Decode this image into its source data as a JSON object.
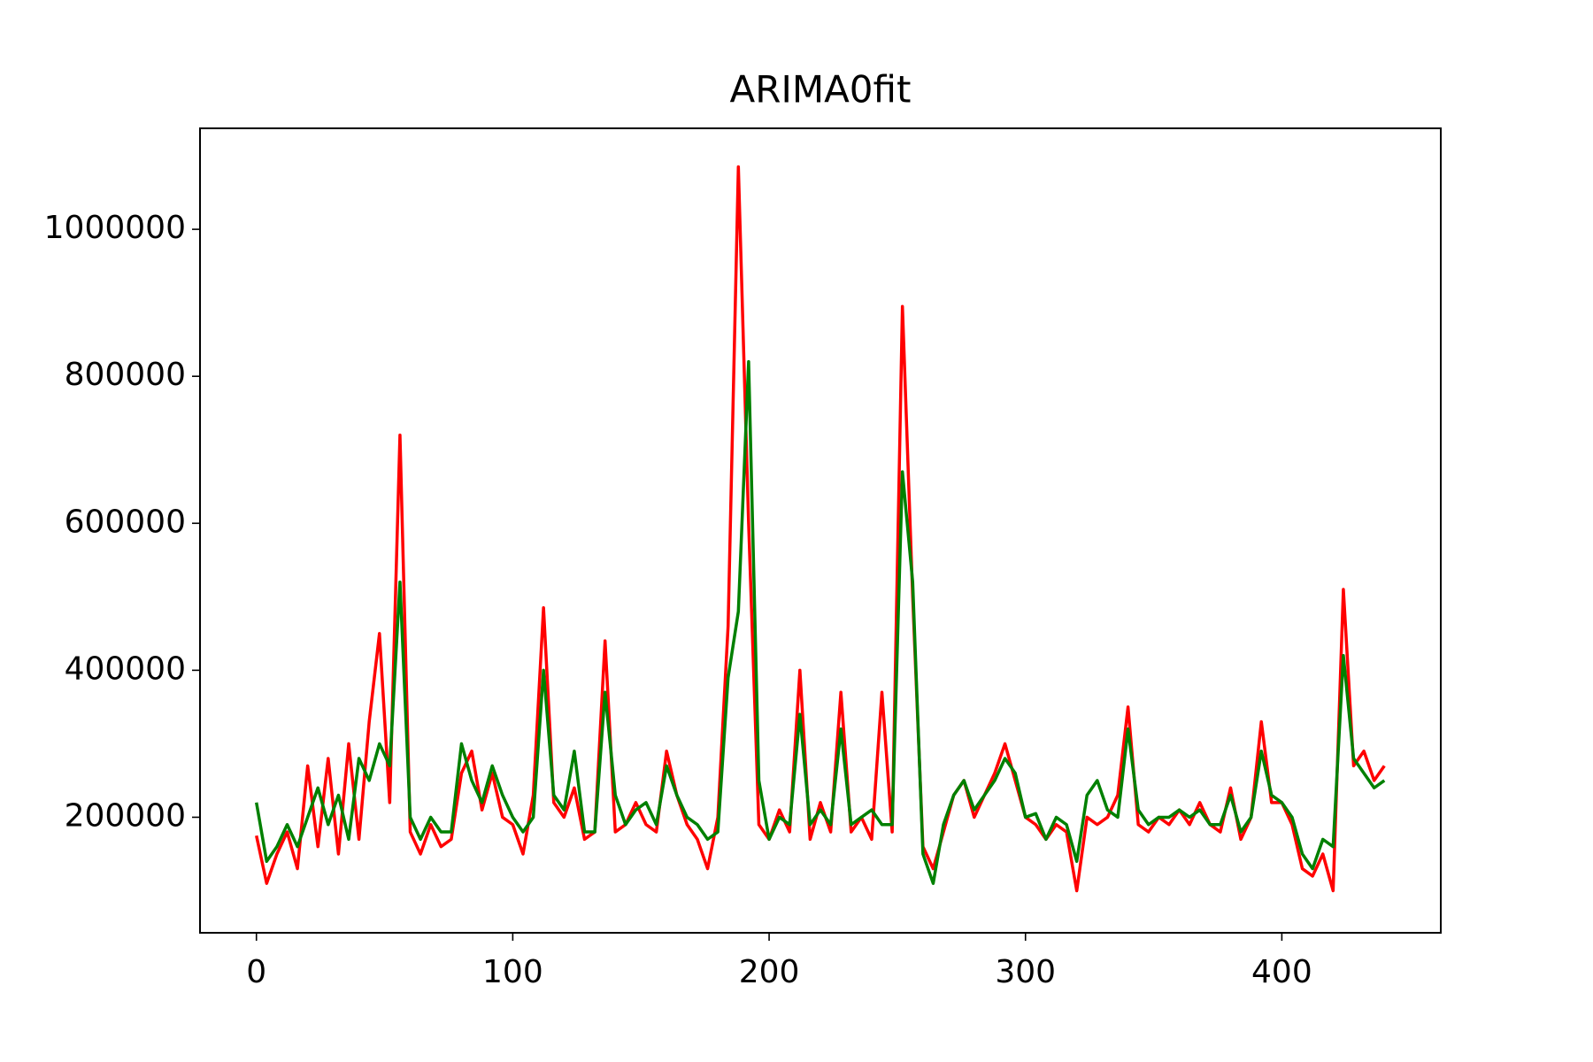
{
  "chart_data": {
    "type": "line",
    "title": "ARIMA0fit",
    "x": [
      0,
      4,
      8,
      12,
      16,
      20,
      24,
      28,
      32,
      36,
      40,
      44,
      48,
      52,
      56,
      60,
      64,
      68,
      72,
      76,
      80,
      84,
      88,
      92,
      96,
      100,
      104,
      108,
      112,
      116,
      120,
      124,
      128,
      132,
      136,
      140,
      144,
      148,
      152,
      156,
      160,
      164,
      168,
      172,
      176,
      180,
      184,
      188,
      192,
      196,
      200,
      204,
      208,
      212,
      216,
      220,
      224,
      228,
      232,
      236,
      240,
      244,
      248,
      252,
      256,
      260,
      264,
      268,
      272,
      276,
      280,
      284,
      288,
      292,
      296,
      300,
      304,
      308,
      312,
      316,
      320,
      324,
      328,
      332,
      336,
      340,
      344,
      348,
      352,
      356,
      360,
      364,
      368,
      372,
      376,
      380,
      384,
      388,
      392,
      396,
      400,
      404,
      408,
      412,
      416,
      420,
      424,
      428,
      432,
      436,
      440
    ],
    "series": [
      {
        "color": "#ff0000",
        "values": [
          175000,
          110000,
          150000,
          180000,
          130000,
          270000,
          160000,
          280000,
          150000,
          300000,
          170000,
          330000,
          450000,
          220000,
          720000,
          180000,
          150000,
          190000,
          160000,
          170000,
          260000,
          290000,
          210000,
          260000,
          200000,
          190000,
          150000,
          230000,
          485000,
          220000,
          200000,
          240000,
          170000,
          180000,
          440000,
          180000,
          190000,
          220000,
          190000,
          180000,
          290000,
          230000,
          190000,
          170000,
          130000,
          200000,
          460000,
          1085000,
          600000,
          190000,
          170000,
          210000,
          180000,
          400000,
          170000,
          220000,
          180000,
          370000,
          180000,
          200000,
          170000,
          370000,
          180000,
          895000,
          500000,
          160000,
          130000,
          180000,
          230000,
          250000,
          200000,
          230000,
          260000,
          300000,
          250000,
          200000,
          190000,
          170000,
          190000,
          180000,
          100000,
          200000,
          190000,
          200000,
          230000,
          350000,
          190000,
          180000,
          200000,
          190000,
          210000,
          190000,
          220000,
          190000,
          180000,
          240000,
          170000,
          200000,
          330000,
          220000,
          220000,
          190000,
          130000,
          120000,
          150000,
          100000,
          510000,
          270000,
          290000,
          250000,
          270000
        ]
      },
      {
        "color": "#008000",
        "values": [
          220000,
          140000,
          160000,
          190000,
          160000,
          200000,
          240000,
          190000,
          230000,
          170000,
          280000,
          250000,
          300000,
          270000,
          520000,
          200000,
          170000,
          200000,
          180000,
          180000,
          300000,
          250000,
          220000,
          270000,
          230000,
          200000,
          180000,
          200000,
          400000,
          230000,
          210000,
          290000,
          180000,
          180000,
          370000,
          230000,
          190000,
          210000,
          220000,
          190000,
          270000,
          230000,
          200000,
          190000,
          170000,
          180000,
          390000,
          480000,
          820000,
          250000,
          170000,
          200000,
          190000,
          340000,
          190000,
          210000,
          190000,
          320000,
          190000,
          200000,
          210000,
          190000,
          190000,
          670000,
          520000,
          150000,
          110000,
          190000,
          230000,
          250000,
          210000,
          230000,
          250000,
          280000,
          260000,
          200000,
          205000,
          170000,
          200000,
          190000,
          140000,
          230000,
          250000,
          210000,
          200000,
          320000,
          210000,
          190000,
          200000,
          200000,
          210000,
          200000,
          210000,
          190000,
          190000,
          230000,
          180000,
          200000,
          290000,
          230000,
          220000,
          200000,
          150000,
          130000,
          170000,
          160000,
          420000,
          280000,
          260000,
          240000,
          250000
        ]
      }
    ],
    "xlim": [
      -22,
      462
    ],
    "ylim": [
      42800,
      1137400
    ],
    "xticks": [
      0,
      100,
      200,
      300,
      400
    ],
    "yticks": [
      200000,
      400000,
      600000,
      800000,
      1000000
    ]
  }
}
